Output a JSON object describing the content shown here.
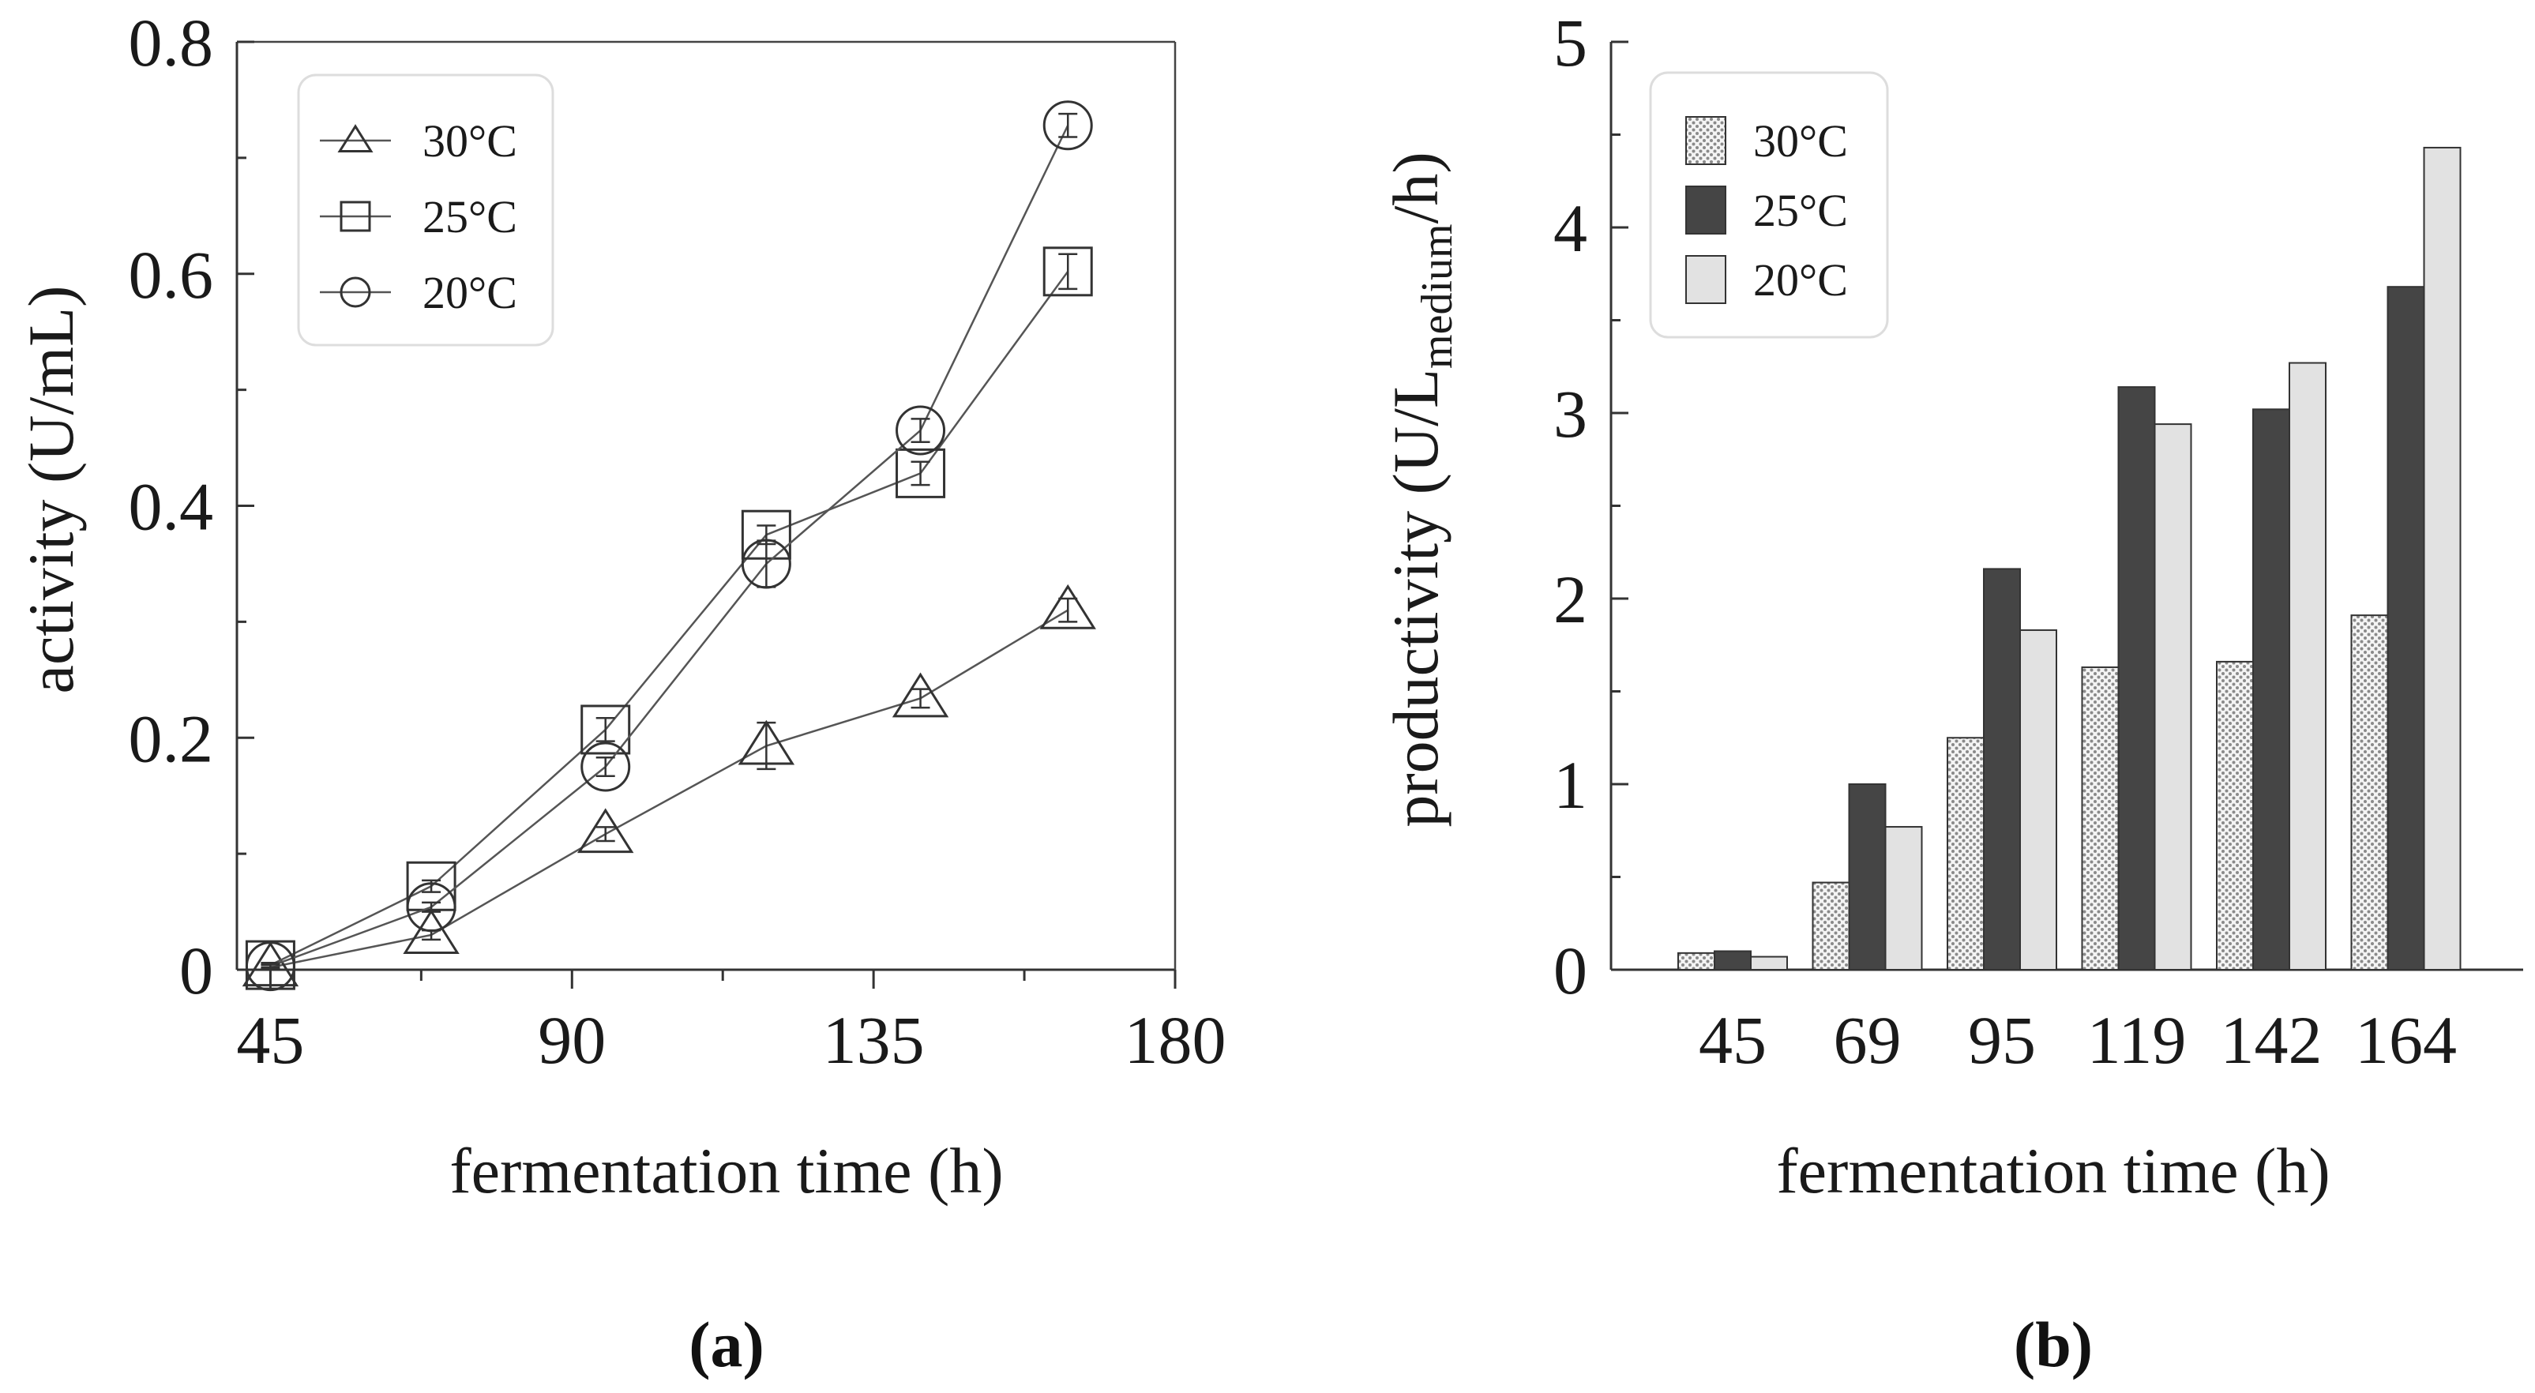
{
  "chart_data": [
    {
      "type": "line",
      "panel_label": "(a)",
      "xlabel": "fermentation time (h)",
      "ylabel": "activity (U/mL)",
      "xlim": [
        40,
        180
      ],
      "ylim": [
        0,
        0.8
      ],
      "xticks": [
        45,
        90,
        135,
        180
      ],
      "xtick_labels": [
        "45",
        "90",
        "135",
        "180"
      ],
      "yticks": [
        0,
        0.2,
        0.4,
        0.6,
        0.8
      ],
      "ytick_labels": [
        "0",
        "0.2",
        "0.4",
        "0.6",
        "0.8"
      ],
      "legend_position": "top-left",
      "x": [
        45,
        69,
        95,
        119,
        142,
        164
      ],
      "series": [
        {
          "name": "30°C",
          "marker": "triangle",
          "values": [
            0.002,
            0.03,
            0.117,
            0.193,
            0.234,
            0.31
          ],
          "errors": [
            0.002,
            0.004,
            0.006,
            0.02,
            0.008,
            0.01
          ]
        },
        {
          "name": "25°C",
          "marker": "square",
          "values": [
            0.004,
            0.072,
            0.207,
            0.375,
            0.428,
            0.602
          ],
          "errors": [
            0.002,
            0.005,
            0.01,
            0.008,
            0.01,
            0.015
          ]
        },
        {
          "name": "20°C",
          "marker": "circle",
          "values": [
            0.003,
            0.054,
            0.175,
            0.35,
            0.465,
            0.728
          ],
          "errors": [
            0.002,
            0.004,
            0.008,
            0.02,
            0.01,
            0.01
          ]
        }
      ]
    },
    {
      "type": "bar",
      "panel_label": "(b)",
      "xlabel": "fermentation time (h)",
      "ylabel_main": "productivity (U/L",
      "ylabel_sub": "medium",
      "ylabel_end": "/h)",
      "ylim": [
        0,
        5
      ],
      "yticks": [
        0,
        1,
        2,
        3,
        4,
        5
      ],
      "ytick_labels": [
        "0",
        "1",
        "2",
        "3",
        "4",
        "5"
      ],
      "legend_position": "top-left",
      "categories": [
        "45",
        "69",
        "95",
        "119",
        "142",
        "164"
      ],
      "series": [
        {
          "name": "30°C",
          "fill": "hatched",
          "values": [
            0.09,
            0.47,
            1.25,
            1.63,
            1.66,
            1.91
          ]
        },
        {
          "name": "25°C",
          "fill": "#454545",
          "values": [
            0.1,
            1.0,
            2.16,
            3.14,
            3.02,
            3.68
          ]
        },
        {
          "name": "20°C",
          "fill": "#e2e2e2",
          "values": [
            0.07,
            0.77,
            1.83,
            2.94,
            3.27,
            4.43
          ]
        }
      ]
    }
  ]
}
